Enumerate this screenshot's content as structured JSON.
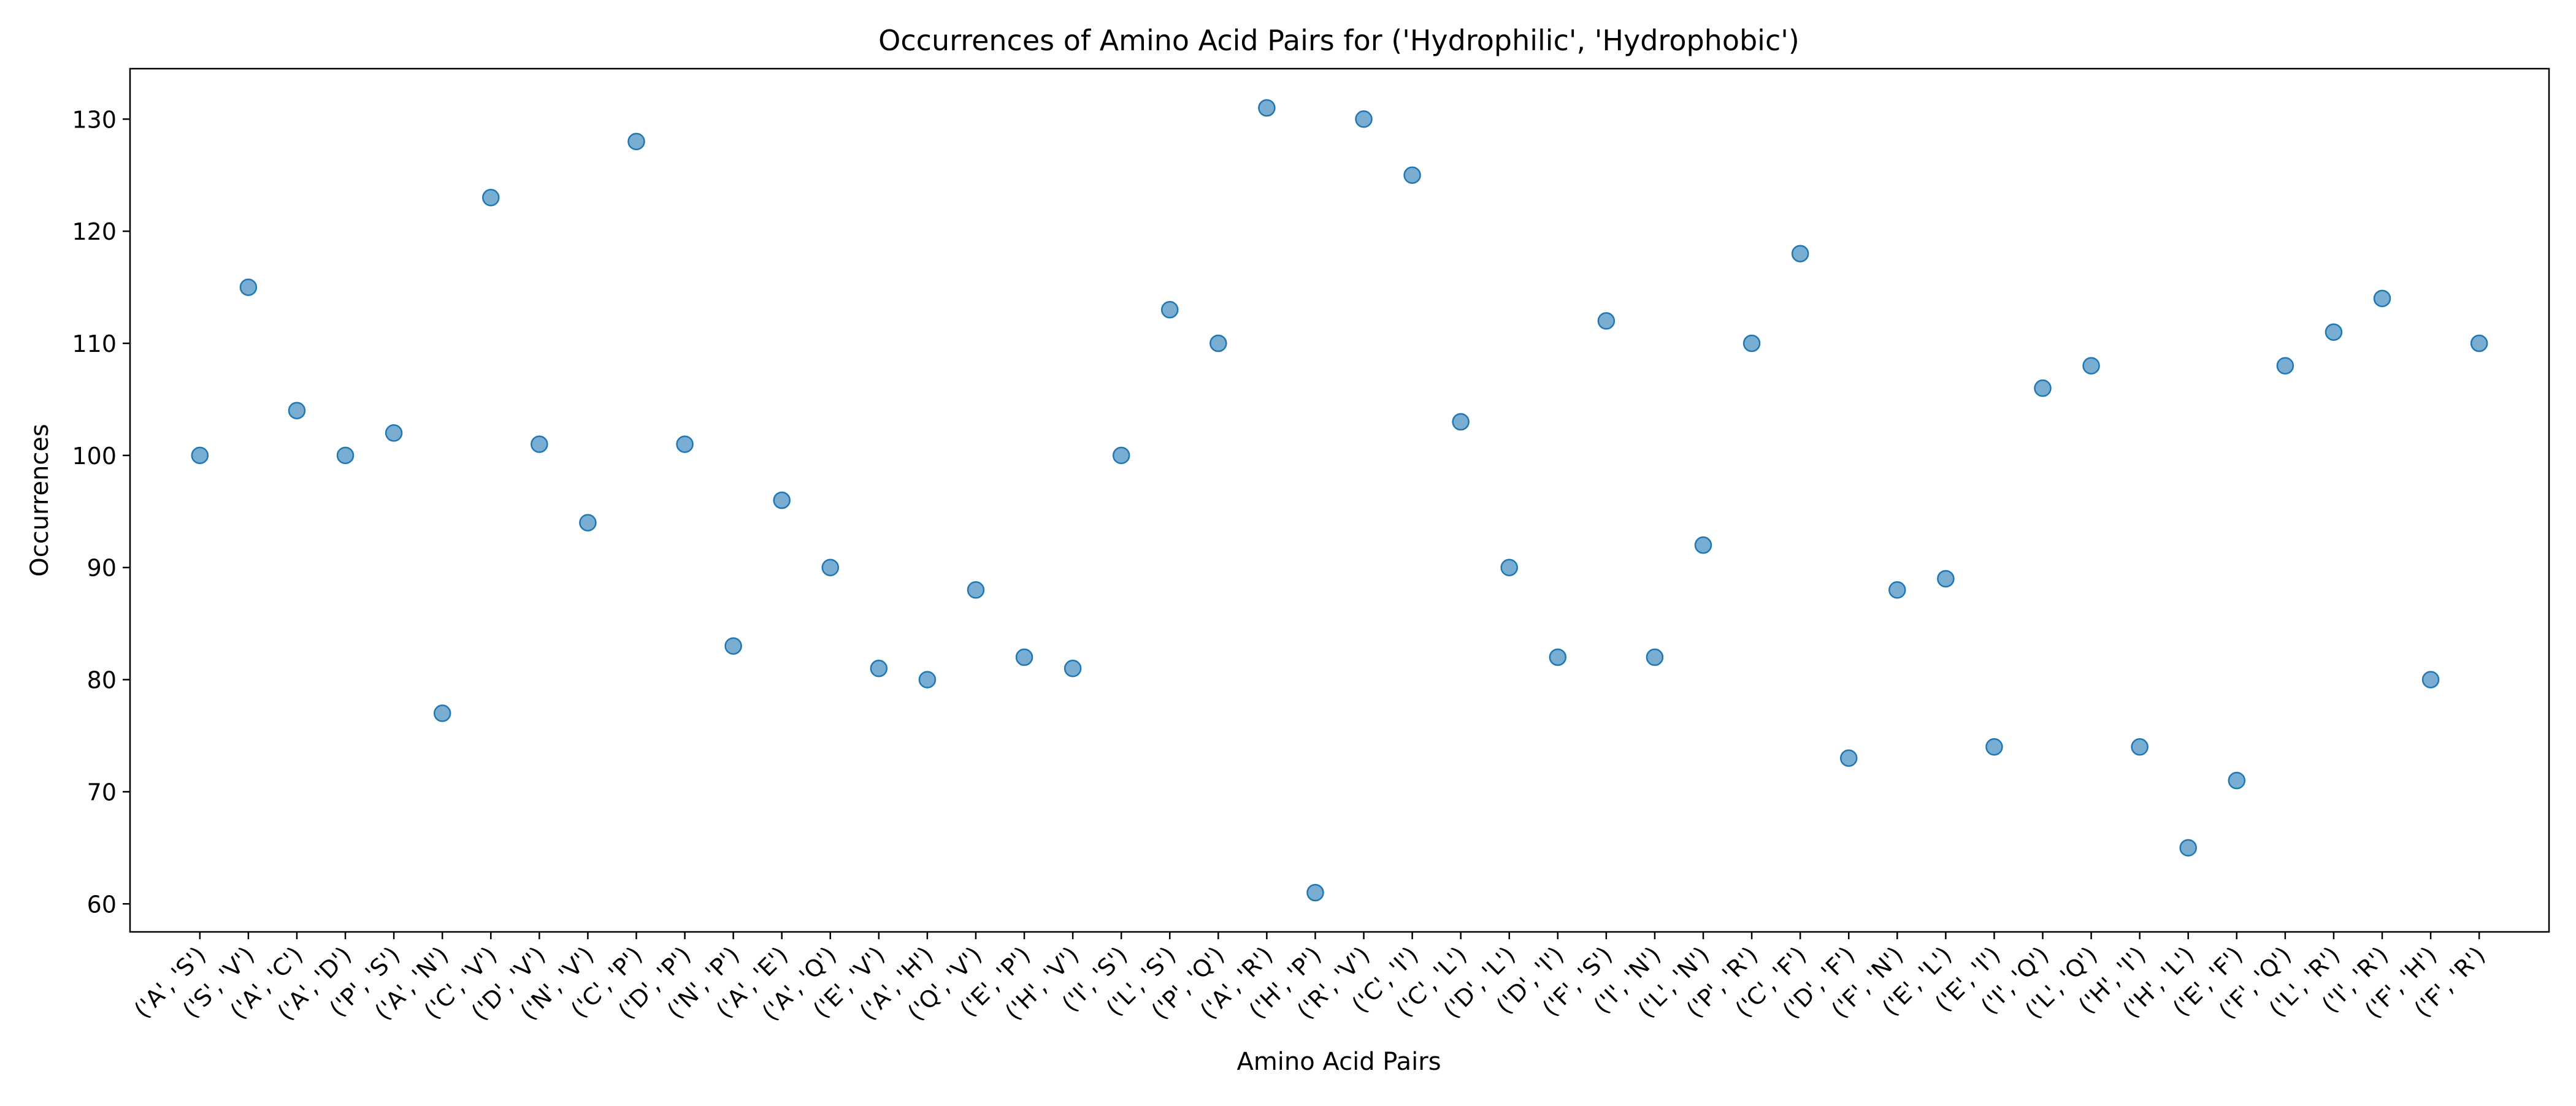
{
  "chart_data": {
    "type": "scatter",
    "title": "Occurrences of Amino Acid Pairs for ('Hydrophilic', 'Hydrophobic')",
    "xlabel": "Amino Acid Pairs",
    "ylabel": "Occurrences",
    "ylim": [
      57.5,
      134.5
    ],
    "yticks": [
      60,
      70,
      80,
      90,
      100,
      110,
      120,
      130
    ],
    "grid": false,
    "legend": "none",
    "marker_color": "#1f77b4",
    "categories": [
      "('A', 'S')",
      "('S', 'V')",
      "('A', 'C')",
      "('A', 'D')",
      "('P', 'S')",
      "('A', 'N')",
      "('C', 'V')",
      "('D', 'V')",
      "('N', 'V')",
      "('C', 'P')",
      "('D', 'P')",
      "('N', 'P')",
      "('A', 'E')",
      "('A', 'Q')",
      "('E', 'V')",
      "('A', 'H')",
      "('Q', 'V')",
      "('E', 'P')",
      "('H', 'V')",
      "('I', 'S')",
      "('L', 'S')",
      "('P', 'Q')",
      "('A', 'R')",
      "('H', 'P')",
      "('R', 'V')",
      "('C', 'I')",
      "('C', 'L')",
      "('D', 'L')",
      "('D', 'I')",
      "('F', 'S')",
      "('I', 'N')",
      "('L', 'N')",
      "('P', 'R')",
      "('C', 'F')",
      "('D', 'F')",
      "('F', 'N')",
      "('E', 'L')",
      "('E', 'I')",
      "('I', 'Q')",
      "('L', 'Q')",
      "('H', 'I')",
      "('H', 'L')",
      "('E', 'F')",
      "('F', 'Q')",
      "('L', 'R')",
      "('I', 'R')",
      "('F', 'H')",
      "('F', 'R')"
    ],
    "values": [
      100,
      115,
      104,
      100,
      102,
      77,
      123,
      101,
      94,
      128,
      101,
      83,
      96,
      90,
      81,
      80,
      88,
      82,
      81,
      100,
      113,
      110,
      131,
      61,
      130,
      125,
      103,
      90,
      82,
      112,
      82,
      92,
      110,
      118,
      73,
      88,
      89,
      74,
      106,
      108,
      74,
      65,
      71,
      108,
      111,
      114,
      80,
      110
    ]
  }
}
